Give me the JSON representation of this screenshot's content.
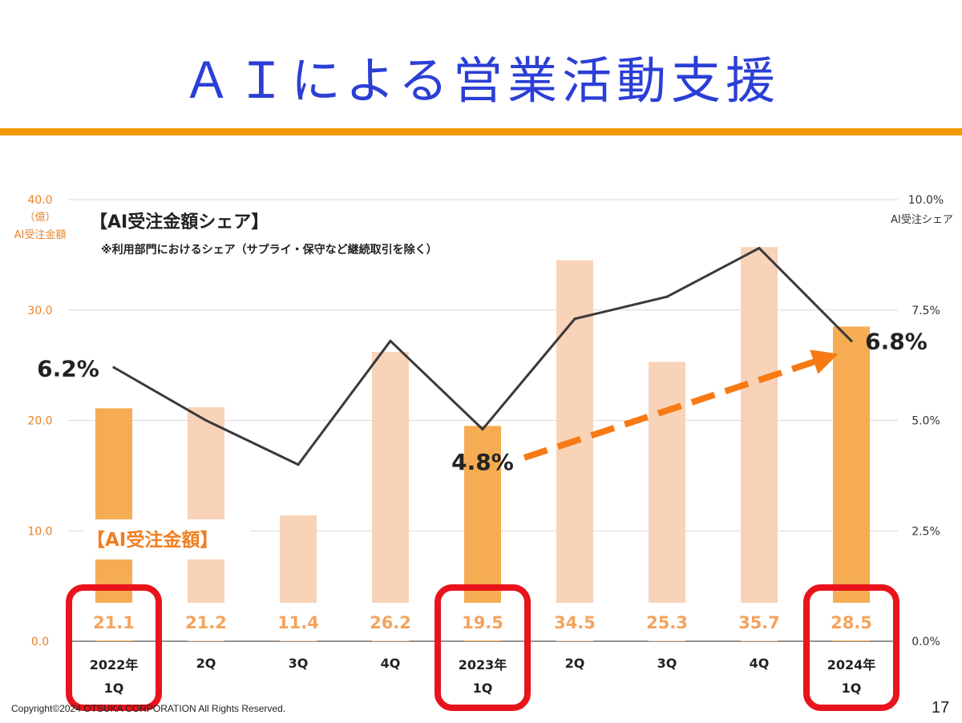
{
  "slide": {
    "title": "ＡＩによる営業活動支援",
    "copyright": "Copyright©2024 OTSUKA CORPORATION All Rights Reserved.",
    "page_number": "17"
  },
  "colors": {
    "title": "#2b3fd6",
    "rule": "#f39800",
    "bar_highlight": "#f5ac52",
    "bar_light": "#f8d3b8",
    "axis_text": "#e8822a",
    "line": "#3a3a3a",
    "arrow": "#f77a14",
    "highlight_box": "#e8131b"
  },
  "chart_data": {
    "type": "bar",
    "title": "【AI受注金額シェア】",
    "subtitle": "※利用部門におけるシェア（サプライ・保守など継続取引を除く）",
    "bar_series_label": "【AI受注金額】",
    "left_axis": {
      "unit": "（億）",
      "name": "AI受注金額",
      "ylim": [
        0,
        40
      ],
      "ticks": [
        "0.0",
        "10.0",
        "20.0",
        "30.0",
        "40.0"
      ]
    },
    "right_axis": {
      "name": "AI受注シェア",
      "ylim": [
        0,
        10
      ],
      "ticks": [
        "0.0%",
        "2.5%",
        "5.0%",
        "7.5%",
        "10.0%"
      ]
    },
    "categories": [
      {
        "year": "2022年",
        "q": "1Q",
        "highlight": true
      },
      {
        "year": "",
        "q": "2Q",
        "highlight": false
      },
      {
        "year": "",
        "q": "3Q",
        "highlight": false
      },
      {
        "year": "",
        "q": "4Q",
        "highlight": false
      },
      {
        "year": "2023年",
        "q": "1Q",
        "highlight": true
      },
      {
        "year": "",
        "q": "2Q",
        "highlight": false
      },
      {
        "year": "",
        "q": "3Q",
        "highlight": false
      },
      {
        "year": "",
        "q": "4Q",
        "highlight": false
      },
      {
        "year": "2024年",
        "q": "1Q",
        "highlight": true
      }
    ],
    "series": [
      {
        "name": "AI受注金額",
        "axis": "left",
        "type": "bar",
        "values": [
          21.1,
          21.2,
          11.4,
          26.2,
          19.5,
          34.5,
          25.3,
          35.7,
          28.5
        ],
        "labels": [
          "21.1",
          "21.2",
          "11.4",
          "26.2",
          "19.5",
          "34.5",
          "25.3",
          "35.7",
          "28.5"
        ]
      },
      {
        "name": "AI受注シェア",
        "axis": "right",
        "type": "line",
        "values": [
          6.2,
          5.0,
          4.0,
          6.8,
          4.8,
          7.3,
          7.8,
          8.9,
          6.8
        ]
      }
    ],
    "annotations": [
      {
        "index": 0,
        "text": "6.2%"
      },
      {
        "index": 4,
        "text": "4.8%"
      },
      {
        "index": 8,
        "text": "6.8%"
      }
    ],
    "trend_arrow": {
      "from_index": 4,
      "to_index": 8
    }
  }
}
